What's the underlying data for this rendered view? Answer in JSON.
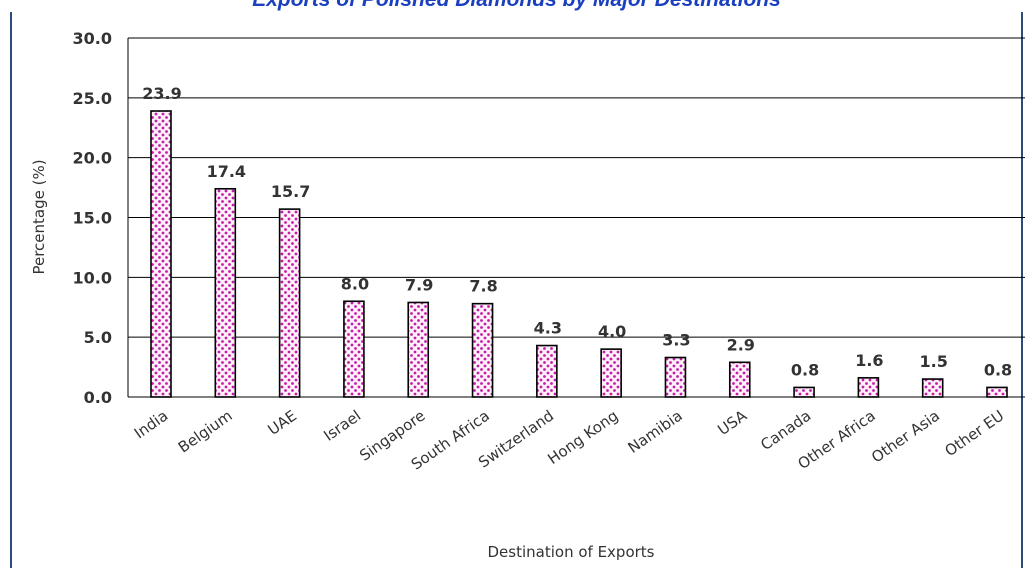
{
  "chart_data": {
    "type": "bar",
    "title": "Exports of Polished Diamonds by Major Destinations",
    "xlabel": "Destination of Exports",
    "ylabel": "Percentage (%)",
    "ylim": [
      0,
      30
    ],
    "yticks": [
      "0.0",
      "5.0",
      "10.0",
      "15.0",
      "20.0",
      "25.0",
      "30.0"
    ],
    "grid": true,
    "categories": [
      "India",
      "Belgium",
      "UAE",
      "Israel",
      "Singapore",
      "South Africa",
      "Switzerland",
      "Hong Kong",
      "Namibia",
      "USA",
      "Canada",
      "Other Africa",
      "Other Asia",
      "Other EU"
    ],
    "values": [
      23.9,
      17.4,
      15.7,
      8.0,
      7.9,
      7.8,
      4.3,
      4.0,
      3.3,
      2.9,
      0.8,
      1.6,
      1.5,
      0.8
    ],
    "value_labels": [
      "23.9",
      "17.4",
      "15.7",
      "8.0",
      "7.9",
      "7.8",
      "4.3",
      "4.0",
      "3.3",
      "2.9",
      "0.8",
      "1.6",
      "1.5",
      "0.8"
    ]
  },
  "colors": {
    "bar_fill": "#fff0fa",
    "bar_dots": "#c21fa8",
    "bar_stroke": "#000000",
    "title": "#1a3fbf",
    "frame": "#2a4a7a"
  }
}
